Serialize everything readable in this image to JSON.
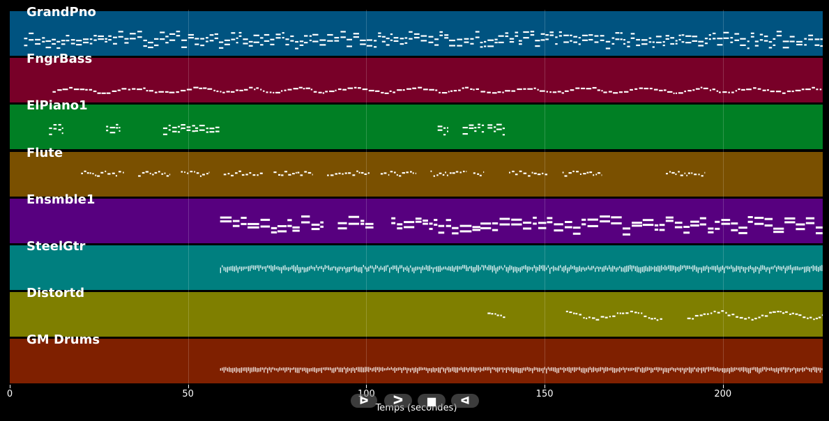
{
  "tracks": [
    {
      "name": "GrandPno",
      "color": "#005380",
      "pattern": "dense-top",
      "segments": [
        [
          4,
          228
        ]
      ]
    },
    {
      "name": "FngrBass",
      "color": "#780028",
      "pattern": "bass",
      "segments": [
        [
          12,
          228
        ]
      ]
    },
    {
      "name": "ElPiano1",
      "color": "#007f24",
      "pattern": "chunks",
      "segments": [
        [
          11,
          15
        ],
        [
          27,
          31
        ],
        [
          43,
          48
        ],
        [
          48,
          52
        ],
        [
          52,
          56
        ],
        [
          56,
          59
        ],
        [
          120,
          123
        ],
        [
          127,
          133
        ],
        [
          134,
          139
        ]
      ]
    },
    {
      "name": "Flute",
      "color": "#7a5000",
      "pattern": "sparse",
      "segments": [
        [
          20,
          32
        ],
        [
          36,
          45
        ],
        [
          48,
          56
        ],
        [
          60,
          71
        ],
        [
          74,
          85
        ],
        [
          89,
          101
        ],
        [
          104,
          114
        ],
        [
          118,
          128
        ],
        [
          130,
          133
        ],
        [
          140,
          151
        ],
        [
          155,
          166
        ],
        [
          184,
          195
        ]
      ]
    },
    {
      "name": "Ensmble1",
      "color": "#57007f",
      "pattern": "blocks",
      "segments": [
        [
          59,
          88
        ],
        [
          92,
          102
        ],
        [
          107,
          132
        ],
        [
          132,
          228
        ]
      ]
    },
    {
      "name": "SteelGtr",
      "color": "#007f7f",
      "pattern": "strum",
      "segments": [
        [
          59,
          228
        ]
      ]
    },
    {
      "name": "Distortd",
      "color": "#7f7f00",
      "pattern": "melody",
      "segments": [
        [
          134,
          139
        ],
        [
          156,
          183
        ],
        [
          190,
          228
        ]
      ]
    },
    {
      "name": "GM Drums",
      "color": "#7f2000",
      "pattern": "drums",
      "segments": [
        [
          59,
          228
        ]
      ]
    }
  ],
  "axis": {
    "label": "Temps (secondes)",
    "min": 0,
    "max": 228,
    "ticks": [
      0,
      50,
      100,
      150,
      200
    ],
    "tick_labels": [
      "0",
      "50",
      "100",
      "150",
      "200"
    ]
  },
  "controls": [
    {
      "name": "play-button",
      "glyph": "ᐅ"
    },
    {
      "name": "forward-button",
      "glyph": "ᐳ"
    },
    {
      "name": "stop-button",
      "glyph": "■"
    },
    {
      "name": "rewind-button",
      "glyph": "ᐊ"
    }
  ]
}
